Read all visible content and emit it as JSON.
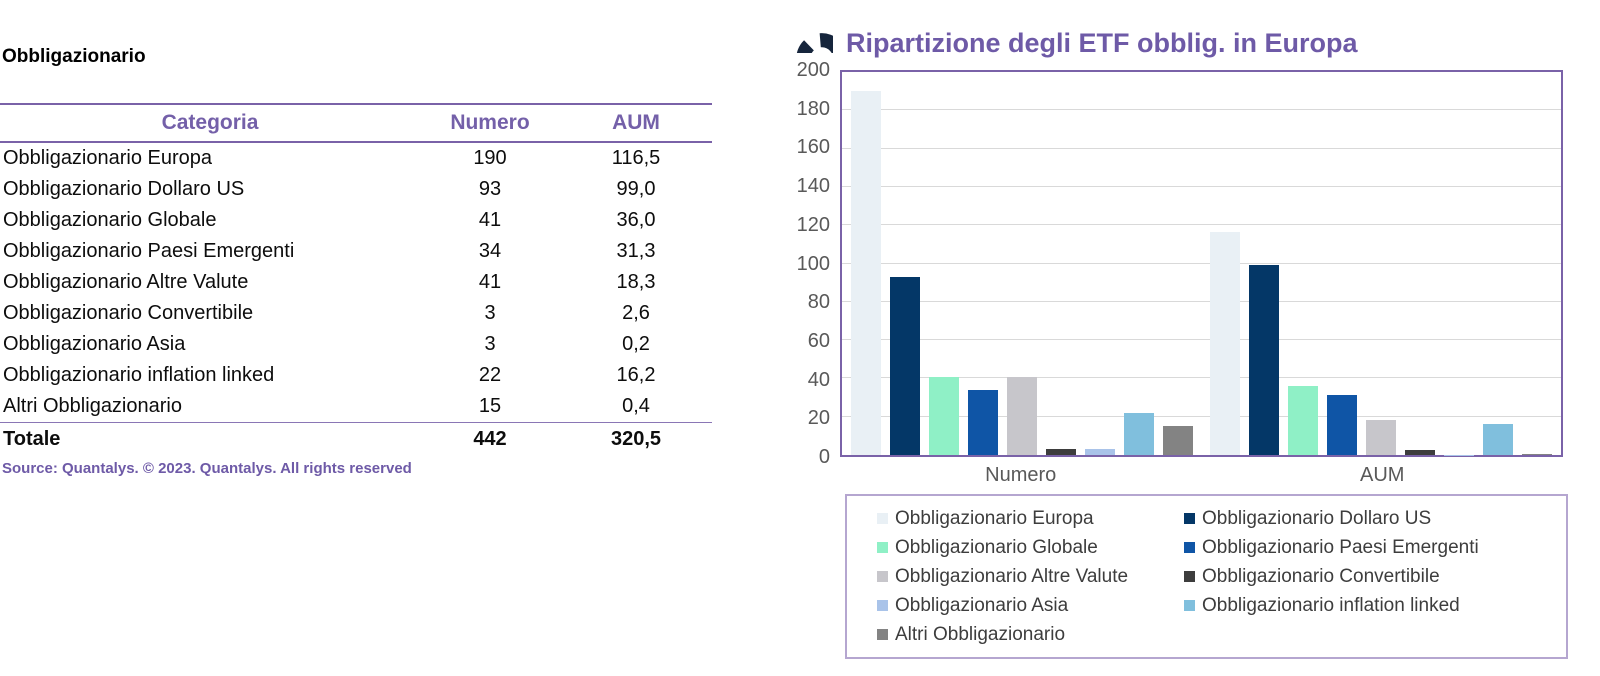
{
  "table_panel": {
    "title": "Obbligazionario",
    "columns": [
      "Categoria",
      "Numero",
      "AUM"
    ],
    "rows": [
      [
        "Obbligazionario Europa",
        "190",
        "116,5"
      ],
      [
        "Obbligazionario Dollaro US",
        "93",
        "99,0"
      ],
      [
        "Obbligazionario Globale",
        "41",
        "36,0"
      ],
      [
        "Obbligazionario Paesi Emergenti",
        "34",
        "31,3"
      ],
      [
        "Obbligazionario Altre Valute",
        "41",
        "18,3"
      ],
      [
        "Obbligazionario Convertibile",
        "3",
        "2,6"
      ],
      [
        "Obbligazionario Asia",
        "3",
        "0,2"
      ],
      [
        "Obbligazionario inflation linked",
        "22",
        "16,2"
      ],
      [
        "Altri Obbligazionario",
        "15",
        "0,4"
      ]
    ],
    "total_row": [
      "Totale",
      "442",
      "320,5"
    ],
    "source": "Source: Quantalys. © 2023. Quantalys. All rights reserved"
  },
  "chart": {
    "title": "Ripartizione degli ETF obblig. in Europa",
    "logo": "quantalys-ring-logo"
  },
  "chart_data": {
    "type": "bar",
    "title": "Ripartizione degli ETF obblig. in Europa",
    "categories": [
      "Numero",
      "AUM"
    ],
    "series": [
      {
        "name": "Obbligazionario Europa",
        "color": "#e9f0f5",
        "values": [
          190,
          116.5
        ]
      },
      {
        "name": "Obbligazionario Dollaro US",
        "color": "#043767",
        "values": [
          93,
          99.0
        ]
      },
      {
        "name": "Obbligazionario Globale",
        "color": "#8ff0c6",
        "values": [
          41,
          36.0
        ]
      },
      {
        "name": "Obbligazionario Paesi Emergenti",
        "color": "#0f55a6",
        "values": [
          34,
          31.3
        ]
      },
      {
        "name": "Obbligazionario Altre Valute",
        "color": "#c7c6cb",
        "values": [
          41,
          18.3
        ]
      },
      {
        "name": "Obbligazionario Convertibile",
        "color": "#3d3d3d",
        "values": [
          3,
          2.6
        ]
      },
      {
        "name": "Obbligazionario Asia",
        "color": "#a9c3e9",
        "values": [
          3,
          0.2
        ]
      },
      {
        "name": "Obbligazionario inflation linked",
        "color": "#80bfdd",
        "values": [
          22,
          16.2
        ]
      },
      {
        "name": "Altri Obbligazionario",
        "color": "#838383",
        "values": [
          15,
          0.4
        ]
      }
    ],
    "ylim": [
      0,
      200
    ],
    "ytick_step": 20,
    "grid": true,
    "legend_position": "bottom",
    "xlabel": "",
    "ylabel": ""
  },
  "colors": {
    "accent_purple_text": "#6e5aa7",
    "table_border_purple": "#7a62a8",
    "legend_border": "#b5a6d0",
    "gridline": "#d9d9d9",
    "axis_text": "#595959",
    "logo_navy": "#16253c"
  }
}
